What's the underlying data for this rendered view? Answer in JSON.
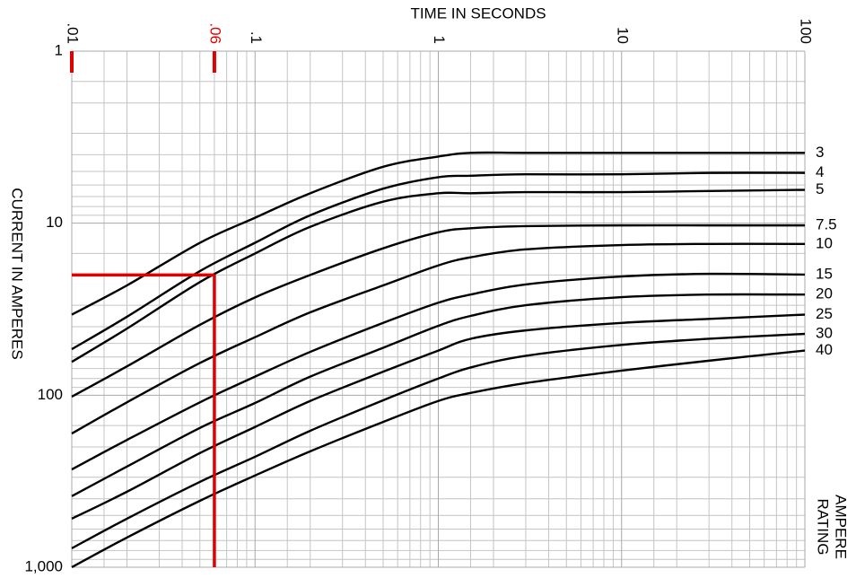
{
  "chart_data": {
    "type": "line",
    "title": "TIME IN SECONDS",
    "y_label": "CURRENT IN AMPERES",
    "legend_title_lines": [
      "AMPERE",
      "RATING"
    ],
    "x_log": true,
    "y_log": true,
    "y_inverted": true,
    "grid": true,
    "minor_grid": true,
    "xlim": [
      0.01,
      100
    ],
    "xticks": [
      {
        "value": 0.01,
        "label": ".01"
      },
      {
        "value": 0.1,
        "label": ".1"
      },
      1,
      10,
      100
    ],
    "ylim": [
      1,
      1000
    ],
    "yticks": [
      1,
      10,
      100,
      {
        "value": 1000,
        "label": "1,000"
      }
    ],
    "x": [
      0.01,
      0.02,
      0.05,
      0.1,
      0.2,
      0.5,
      1,
      1.5,
      3,
      10,
      30,
      100
    ],
    "series": [
      {
        "name": "3",
        "color": "#000000",
        "values": [
          34,
          23,
          13,
          9.3,
          6.7,
          4.7,
          4.1,
          3.9,
          3.9,
          3.9,
          3.9,
          3.9
        ]
      },
      {
        "name": "4",
        "color": "#000000",
        "values": [
          54,
          35,
          19,
          13,
          9.0,
          6.3,
          5.4,
          5.3,
          5.2,
          5.2,
          5.1,
          5.1
        ]
      },
      {
        "name": "5",
        "color": "#000000",
        "values": [
          64,
          41,
          22,
          15,
          10.5,
          7.5,
          6.7,
          6.7,
          6.6,
          6.6,
          6.5,
          6.4
        ]
      },
      {
        "name": "7.5",
        "color": "#000000",
        "values": [
          102,
          68,
          39,
          27,
          20,
          14,
          11.3,
          10.7,
          10.4,
          10.3,
          10.3,
          10.3
        ]
      },
      {
        "name": "10",
        "color": "#000000",
        "values": [
          167,
          110,
          65,
          46,
          33,
          23,
          17.6,
          15.8,
          14.2,
          13.4,
          13.2,
          13.2
        ]
      },
      {
        "name": "15",
        "color": "#000000",
        "values": [
          270,
          182,
          110,
          78,
          56,
          38,
          29,
          26,
          22.7,
          20.4,
          19.7,
          19.9
        ]
      },
      {
        "name": "20",
        "color": "#000000",
        "values": [
          386,
          260,
          155,
          111,
          78,
          53,
          39.5,
          34.6,
          30,
          26.9,
          26,
          26
        ]
      },
      {
        "name": "25",
        "color": "#000000",
        "values": [
          522,
          364,
          217,
          153,
          108,
          73,
          55,
          47,
          42,
          38,
          36,
          34
        ]
      },
      {
        "name": "30",
        "color": "#000000",
        "values": [
          776,
          522,
          319,
          228,
          161,
          107,
          80,
          69,
          59,
          51,
          47,
          44
        ]
      },
      {
        "name": "40",
        "color": "#000000",
        "values": [
          1000,
          672,
          411,
          293,
          212,
          143,
          108,
          97,
          85,
          72,
          63,
          55
        ]
      }
    ],
    "annotation": {
      "x": {
        "value": 0.06,
        "label": ".06"
      },
      "y": 20,
      "color": "#e00000"
    }
  }
}
